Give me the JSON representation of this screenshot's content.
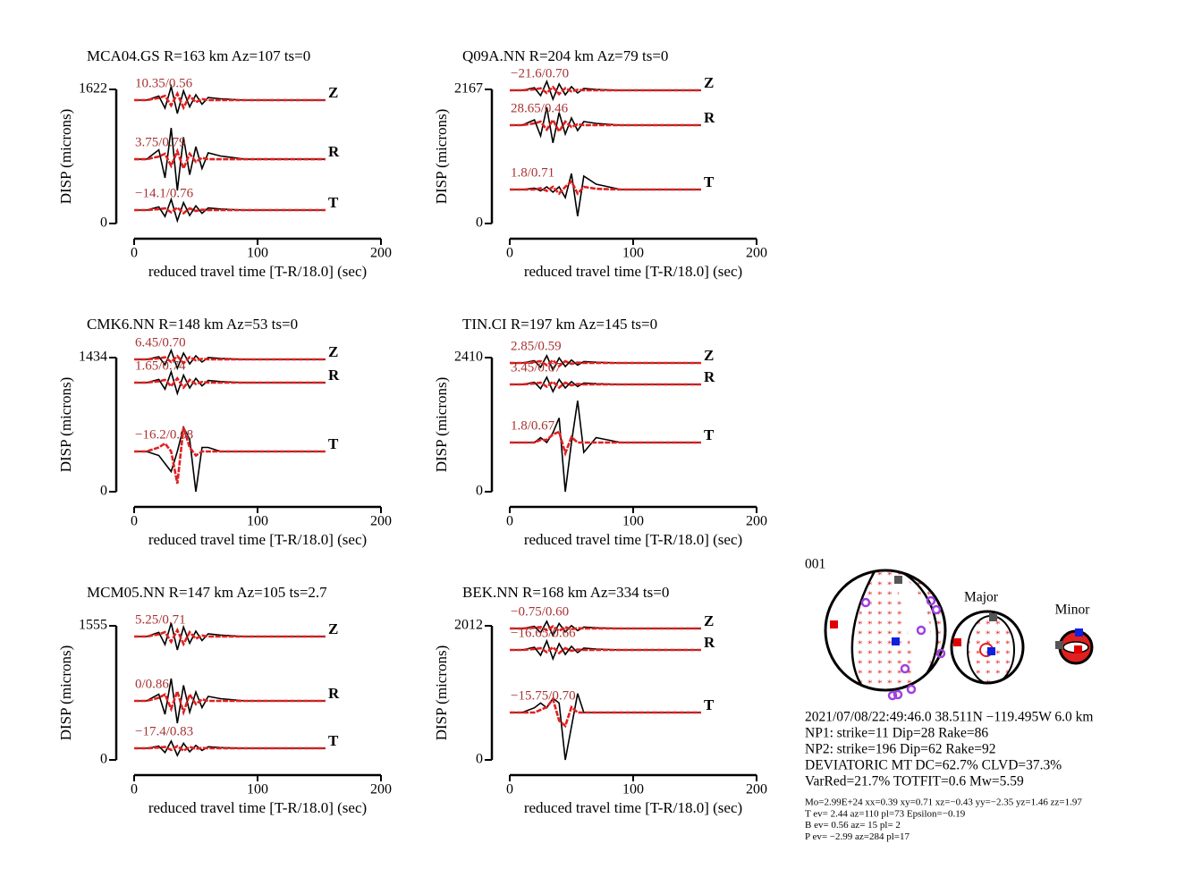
{
  "chart_data": [
    {
      "type": "line",
      "title": "MCA04.GS R=163 km Az=107 ts=0",
      "ylabel": "DISP (microns)",
      "xlabel": "reduced travel time [T-R/18.0] (sec)",
      "x": [
        0,
        10,
        20,
        25,
        30,
        35,
        40,
        45,
        50,
        55,
        60,
        70,
        90,
        155
      ],
      "xlim": [
        0,
        200
      ],
      "xticks": [
        0,
        100,
        200
      ],
      "ylim": [
        0,
        1622
      ],
      "yticks": [
        0,
        1622
      ],
      "traces": [
        {
          "component": "Z",
          "label": "10.35/0.56",
          "observed": {
            "color": "#000000",
            "values": [
              1492,
              1492,
              1541,
              1395,
              1654,
              1330,
              1605,
              1411,
              1557,
              1443,
              1524,
              1508,
              1492,
              1492
            ]
          },
          "synthetic": {
            "color": "#e02020",
            "values": [
              1492,
              1492,
              1518,
              1544,
              1427,
              1570,
              1401,
              1544,
              1466,
              1505,
              1492,
              1492,
              1492,
              1492
            ]
          }
        },
        {
          "component": "R",
          "label": "3.75/0.79",
          "observed": {
            "color": "#000000",
            "values": [
              778,
              778,
              891,
              551,
              1156,
              400,
              1043,
              589,
              929,
              665,
              854,
              816,
              778,
              778
            ]
          },
          "synthetic": {
            "color": "#e02020",
            "values": [
              778,
              778,
              810,
              843,
              697,
              875,
              665,
              843,
              746,
              794,
              778,
              778,
              778,
              778
            ]
          }
        },
        {
          "component": "T",
          "label": "−14.1/0.76",
          "observed": {
            "color": "#000000",
            "values": [
              162,
              162,
              201,
              84,
              292,
              32,
              253,
              97,
              214,
              123,
              188,
              175,
              162,
              162
            ]
          },
          "synthetic": {
            "color": "#e02020",
            "values": [
              162,
              162,
              173,
              184,
              135,
              194,
              124,
              184,
              151,
              167,
              162,
              162,
              162,
              162
            ]
          }
        }
      ]
    },
    {
      "type": "line",
      "title": "Q09A.NN R=204 km Az=79 ts=0",
      "ylabel": "DISP (microns)",
      "xlabel": "reduced travel time [T-R/18.0] (sec)",
      "x": [
        0,
        10,
        20,
        25,
        30,
        35,
        40,
        45,
        50,
        55,
        60,
        70,
        90,
        155
      ],
      "xlim": [
        0,
        200
      ],
      "xticks": [
        0,
        100,
        200
      ],
      "ylim": [
        0,
        2167
      ],
      "yticks": [
        0,
        2167
      ],
      "traces": [
        {
          "component": "Z",
          "label": "−21.6/0.70",
          "observed": {
            "color": "#000000",
            "values": [
              2152,
              2152,
              2195,
              2066,
              2296,
              2008,
              2253,
              2080,
              2210,
              2109,
              2181,
              2166,
              2152,
              2152
            ]
          },
          "synthetic": {
            "color": "#e02020",
            "values": [
              2152,
              2152,
              2169,
              2186,
              2109,
              2204,
              2092,
              2186,
              2135,
              2161,
              2152,
              2152,
              2152,
              2152
            ]
          }
        },
        {
          "component": "R",
          "label": "28.65/0.46",
          "observed": {
            "color": "#000000",
            "values": [
              1589,
              1589,
              1675,
              1416,
              1877,
              1301,
              1791,
              1445,
              1704,
              1503,
              1647,
              1618,
              1589,
              1589
            ]
          },
          "synthetic": {
            "color": "#e02020",
            "values": [
              1589,
              1589,
              1618,
              1647,
              1517,
              1675,
              1488,
              1647,
              1560,
              1603,
              1589,
              1589,
              1589,
              1589
            ]
          }
        },
        {
          "component": "T",
          "label": "1.8/0.71",
          "observed": {
            "color": "#000000",
            "values": [
              549,
              549,
              571,
              527,
              592,
              506,
              592,
              419,
              808,
              117,
              765,
              635,
              549,
              549
            ]
          },
          "synthetic": {
            "color": "#e02020",
            "values": [
              549,
              549,
              549,
              571,
              527,
              592,
              484,
              592,
              679,
              484,
              592,
              560,
              549,
              549
            ]
          }
        }
      ]
    },
    {
      "type": "line",
      "title": "CMK6.NN R=148 km Az=53 ts=0",
      "ylabel": "DISP (microns)",
      "xlabel": "reduced travel time [T-R/18.0] (sec)",
      "x": [
        0,
        10,
        20,
        25,
        30,
        35,
        40,
        45,
        50,
        55,
        60,
        70,
        90,
        155
      ],
      "xlim": [
        0,
        200
      ],
      "xticks": [
        0,
        100,
        200
      ],
      "ylim": [
        0,
        1434
      ],
      "yticks": [
        0,
        1434
      ],
      "traces": [
        {
          "component": "Z",
          "label": "6.45/0.70",
          "observed": {
            "color": "#000000",
            "values": [
              1415,
              1415,
              1444,
              1357,
              1511,
              1319,
              1482,
              1367,
              1453,
              1386,
              1434,
              1425,
              1415,
              1415
            ]
          },
          "synthetic": {
            "color": "#e02020",
            "values": [
              1415,
              1415,
              1426,
              1438,
              1387,
              1449,
              1375,
              1438,
              1404,
              1421,
              1415,
              1415,
              1415,
              1415
            ]
          }
        },
        {
          "component": "R",
          "label": "1.65/0.74",
          "observed": {
            "color": "#000000",
            "values": [
              1166,
              1166,
              1201,
              1097,
              1281,
              1051,
              1247,
              1109,
              1212,
              1132,
              1189,
              1178,
              1166,
              1166
            ]
          },
          "synthetic": {
            "color": "#e02020",
            "values": [
              1166,
              1166,
              1181,
              1196,
              1128,
              1212,
              1113,
              1196,
              1151,
              1174,
              1166,
              1166,
              1166,
              1166
            ]
          }
        },
        {
          "component": "T",
          "label": "−16.2/0.68",
          "observed": {
            "color": "#000000",
            "values": [
              430,
              430,
              387,
              301,
              215,
              430,
              688,
              559,
              0,
              473,
              473,
              430,
              430,
              430
            ]
          },
          "synthetic": {
            "color": "#e02020",
            "values": [
              430,
              430,
              473,
              516,
              430,
              86,
              688,
              473,
              387,
              430,
              430,
              430,
              430,
              430
            ]
          }
        }
      ]
    },
    {
      "type": "line",
      "title": "TIN.CI R=197 km Az=145 ts=0",
      "ylabel": "DISP (microns)",
      "xlabel": "reduced travel time [T-R/18.0] (sec)",
      "x": [
        0,
        10,
        20,
        25,
        30,
        35,
        40,
        45,
        50,
        55,
        60,
        70,
        90,
        155
      ],
      "xlim": [
        0,
        200
      ],
      "xticks": [
        0,
        100,
        200
      ],
      "ylim": [
        0,
        2410
      ],
      "yticks": [
        0,
        2410
      ],
      "traces": [
        {
          "component": "Z",
          "label": "2.85/0.59",
          "observed": {
            "color": "#000000",
            "values": [
              2314,
              2314,
              2353,
              2237,
              2443,
              2185,
              2404,
              2250,
              2366,
              2275,
              2340,
              2327,
              2314,
              2314
            ]
          },
          "synthetic": {
            "color": "#e02020",
            "values": [
              2314,
              2314,
              2330,
              2346,
              2274,
              2362,
              2258,
              2346,
              2298,
              2322,
              2314,
              2314,
              2314,
              2314
            ]
          }
        },
        {
          "component": "R",
          "label": "3.45/0.67",
          "observed": {
            "color": "#000000",
            "values": [
              1928,
              1928,
              1967,
              1851,
              2057,
              1799,
              2018,
              1864,
              1980,
              1889,
              1954,
              1941,
              1928,
              1928
            ]
          },
          "synthetic": {
            "color": "#e02020",
            "values": [
              1928,
              1928,
              1944,
              1960,
              1888,
              1976,
              1872,
              1960,
              1912,
              1936,
              1928,
              1928,
              1928,
              1928
            ]
          }
        },
        {
          "component": "T",
          "label": "1.8/0.67",
          "observed": {
            "color": "#000000",
            "values": [
              884,
              884,
              884,
              972,
              884,
              1061,
              1326,
              0,
              884,
              1635,
              707,
              972,
              884,
              884
            ]
          },
          "synthetic": {
            "color": "#e02020",
            "values": [
              884,
              884,
              884,
              932,
              932,
              1029,
              1077,
              691,
              980,
              884,
              884,
              884,
              884,
              884
            ]
          }
        }
      ]
    },
    {
      "type": "line",
      "title": "MCM05.NN R=147 km Az=105 ts=2.7",
      "ylabel": "DISP (microns)",
      "xlabel": "reduced travel time [T-R/18.0] (sec)",
      "x": [
        0,
        10,
        20,
        25,
        30,
        35,
        40,
        45,
        50,
        55,
        60,
        70,
        90,
        155
      ],
      "xlim": [
        0,
        200
      ],
      "xticks": [
        0,
        100,
        200
      ],
      "ylim": [
        0,
        1555
      ],
      "yticks": [
        0,
        1555
      ],
      "traces": [
        {
          "component": "Z",
          "label": "5.25/0.71",
          "observed": {
            "color": "#000000",
            "values": [
              1431,
              1431,
              1478,
              1337,
              1587,
              1275,
              1540,
              1353,
              1493,
              1384,
              1462,
              1447,
              1431,
              1431
            ]
          },
          "synthetic": {
            "color": "#e02020",
            "values": [
              1431,
              1431,
              1456,
              1481,
              1369,
              1505,
              1344,
              1481,
              1406,
              1443,
              1431,
              1431,
              1431,
              1431
            ]
          }
        },
        {
          "component": "R",
          "label": "0/0.86",
          "observed": {
            "color": "#000000",
            "values": [
              684,
              684,
              762,
              529,
              943,
              425,
              865,
              554,
              788,
              606,
              736,
              710,
              684,
              684
            ]
          },
          "synthetic": {
            "color": "#e02020",
            "values": [
              684,
              684,
              721,
              759,
              591,
              796,
              553,
              759,
              647,
              703,
              684,
              684,
              684,
              684
            ]
          }
        },
        {
          "component": "T",
          "label": "−17.4/0.83",
          "observed": {
            "color": "#000000",
            "values": [
              135,
              135,
              160,
              85,
              218,
              52,
              193,
              94,
              168,
              110,
              152,
              143,
              135,
              135
            ]
          },
          "synthetic": {
            "color": "#e02020",
            "values": [
              135,
              135,
              143,
              151,
              115,
              160,
              106,
              151,
              127,
              139,
              135,
              135,
              135,
              135
            ]
          }
        }
      ]
    },
    {
      "type": "line",
      "title": "BEK.NN R=168 km Az=334 ts=0",
      "ylabel": "DISP (microns)",
      "xlabel": "reduced travel time [T-R/18.0] (sec)",
      "x": [
        0,
        10,
        20,
        25,
        30,
        35,
        40,
        45,
        50,
        55,
        60,
        70,
        90,
        155
      ],
      "xlim": [
        0,
        200
      ],
      "xticks": [
        0,
        100,
        200
      ],
      "ylim": [
        0,
        2012
      ],
      "yticks": [
        0,
        2012
      ],
      "traces": [
        {
          "component": "Z",
          "label": "−0.75/0.60",
          "observed": {
            "color": "#000000",
            "values": [
              1972,
              1972,
              2004,
              1908,
              2079,
              1865,
              2047,
              1919,
              2015,
              1940,
              1993,
              1983,
              1972,
              1972
            ]
          },
          "synthetic": {
            "color": "#e02020",
            "values": [
              1972,
              1972,
              1983,
              1994,
              1945,
              2004,
              1934,
              1994,
              1961,
              1977,
              1972,
              1972,
              1972,
              1972
            ]
          }
        },
        {
          "component": "R",
          "label": "−16.65/0.66",
          "observed": {
            "color": "#000000",
            "values": [
              1650,
              1650,
              1690,
              1570,
              1784,
              1516,
              1744,
              1583,
              1704,
              1610,
              1677,
              1663,
              1650,
              1650
            ]
          },
          "synthetic": {
            "color": "#e02020",
            "values": [
              1650,
              1650,
              1663,
              1677,
              1616,
              1690,
              1603,
              1677,
              1637,
              1657,
              1650,
              1650,
              1650,
              1650
            ]
          }
        },
        {
          "component": "T",
          "label": "−15.75/0.70",
          "observed": {
            "color": "#000000",
            "values": [
              711,
              711,
              782,
              853,
              782,
              924,
              853,
              0,
              498,
              995,
              711,
              711,
              711,
              711
            ]
          },
          "synthetic": {
            "color": "#e02020",
            "values": [
              711,
              711,
              711,
              751,
              791,
              912,
              590,
              510,
              791,
              711,
              711,
              711,
              711,
              711
            ]
          }
        }
      ]
    }
  ],
  "mechanism": {
    "id": "001",
    "major_label": "Major",
    "minor_label": "Minor",
    "lines": [
      "2021/07/08/22:49:46.0 38.511N −119.495W 6.0 km",
      "NP1: strike=11 Dip=28 Rake=86",
      "NP2: strike=196 Dip=62 Rake=92",
      "DEVIATORIC MT DC=62.7% CLVD=37.3%",
      "VarRed=21.7% TOTFIT=0.6 Mw=5.59"
    ],
    "details": [
      "Mo=2.99E+24 xx=0.39 xy=0.71 xz=−0.43 yy=−2.35 yz=1.46 zz=1.97",
      "T ev=  2.44 az=110 pl=73 Epsilon=−0.19",
      "B ev=  0.56 az= 15 pl= 2",
      "P ev= −2.99 az=284 pl=17"
    ]
  }
}
